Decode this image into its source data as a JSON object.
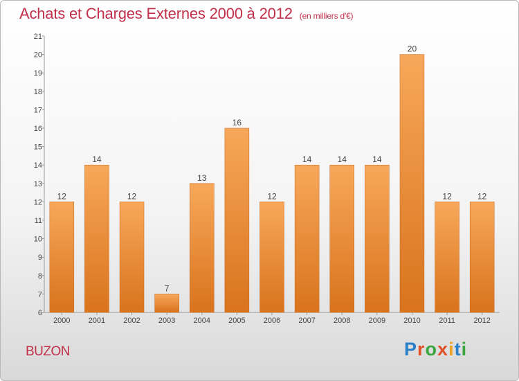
{
  "header": {
    "title": "Achats et Charges Externes 2000 à 2012",
    "subtitle": "(en milliers d'€)"
  },
  "footer": {
    "town": "BUZON",
    "logo_text": "Proxiti",
    "logo_colors": [
      "#2a7fc9",
      "#e0522a",
      "#3aa640",
      "#e0522a",
      "#f0a020",
      "#2a7fc9",
      "#3aa640"
    ]
  },
  "colors": {
    "bar_light": "#f7a85a",
    "bar_dark": "#d9731c",
    "accent": "#c0304a"
  },
  "chart_data": {
    "type": "bar",
    "title": "Achats et Charges Externes 2000 à 2012",
    "subtitle": "(en milliers d'€)",
    "categories": [
      "2000",
      "2001",
      "2002",
      "2003",
      "2004",
      "2005",
      "2006",
      "2007",
      "2008",
      "2009",
      "2010",
      "2011",
      "2012"
    ],
    "values": [
      12,
      14,
      12,
      7,
      13,
      16,
      12,
      14,
      14,
      14,
      20,
      12,
      12
    ],
    "ylim": [
      6,
      21
    ],
    "yticks": [
      6,
      7,
      8,
      9,
      10,
      11,
      12,
      13,
      14,
      15,
      16,
      17,
      18,
      19,
      20,
      21
    ],
    "xlabel": "",
    "ylabel": "",
    "grid": false,
    "legend": "none"
  }
}
